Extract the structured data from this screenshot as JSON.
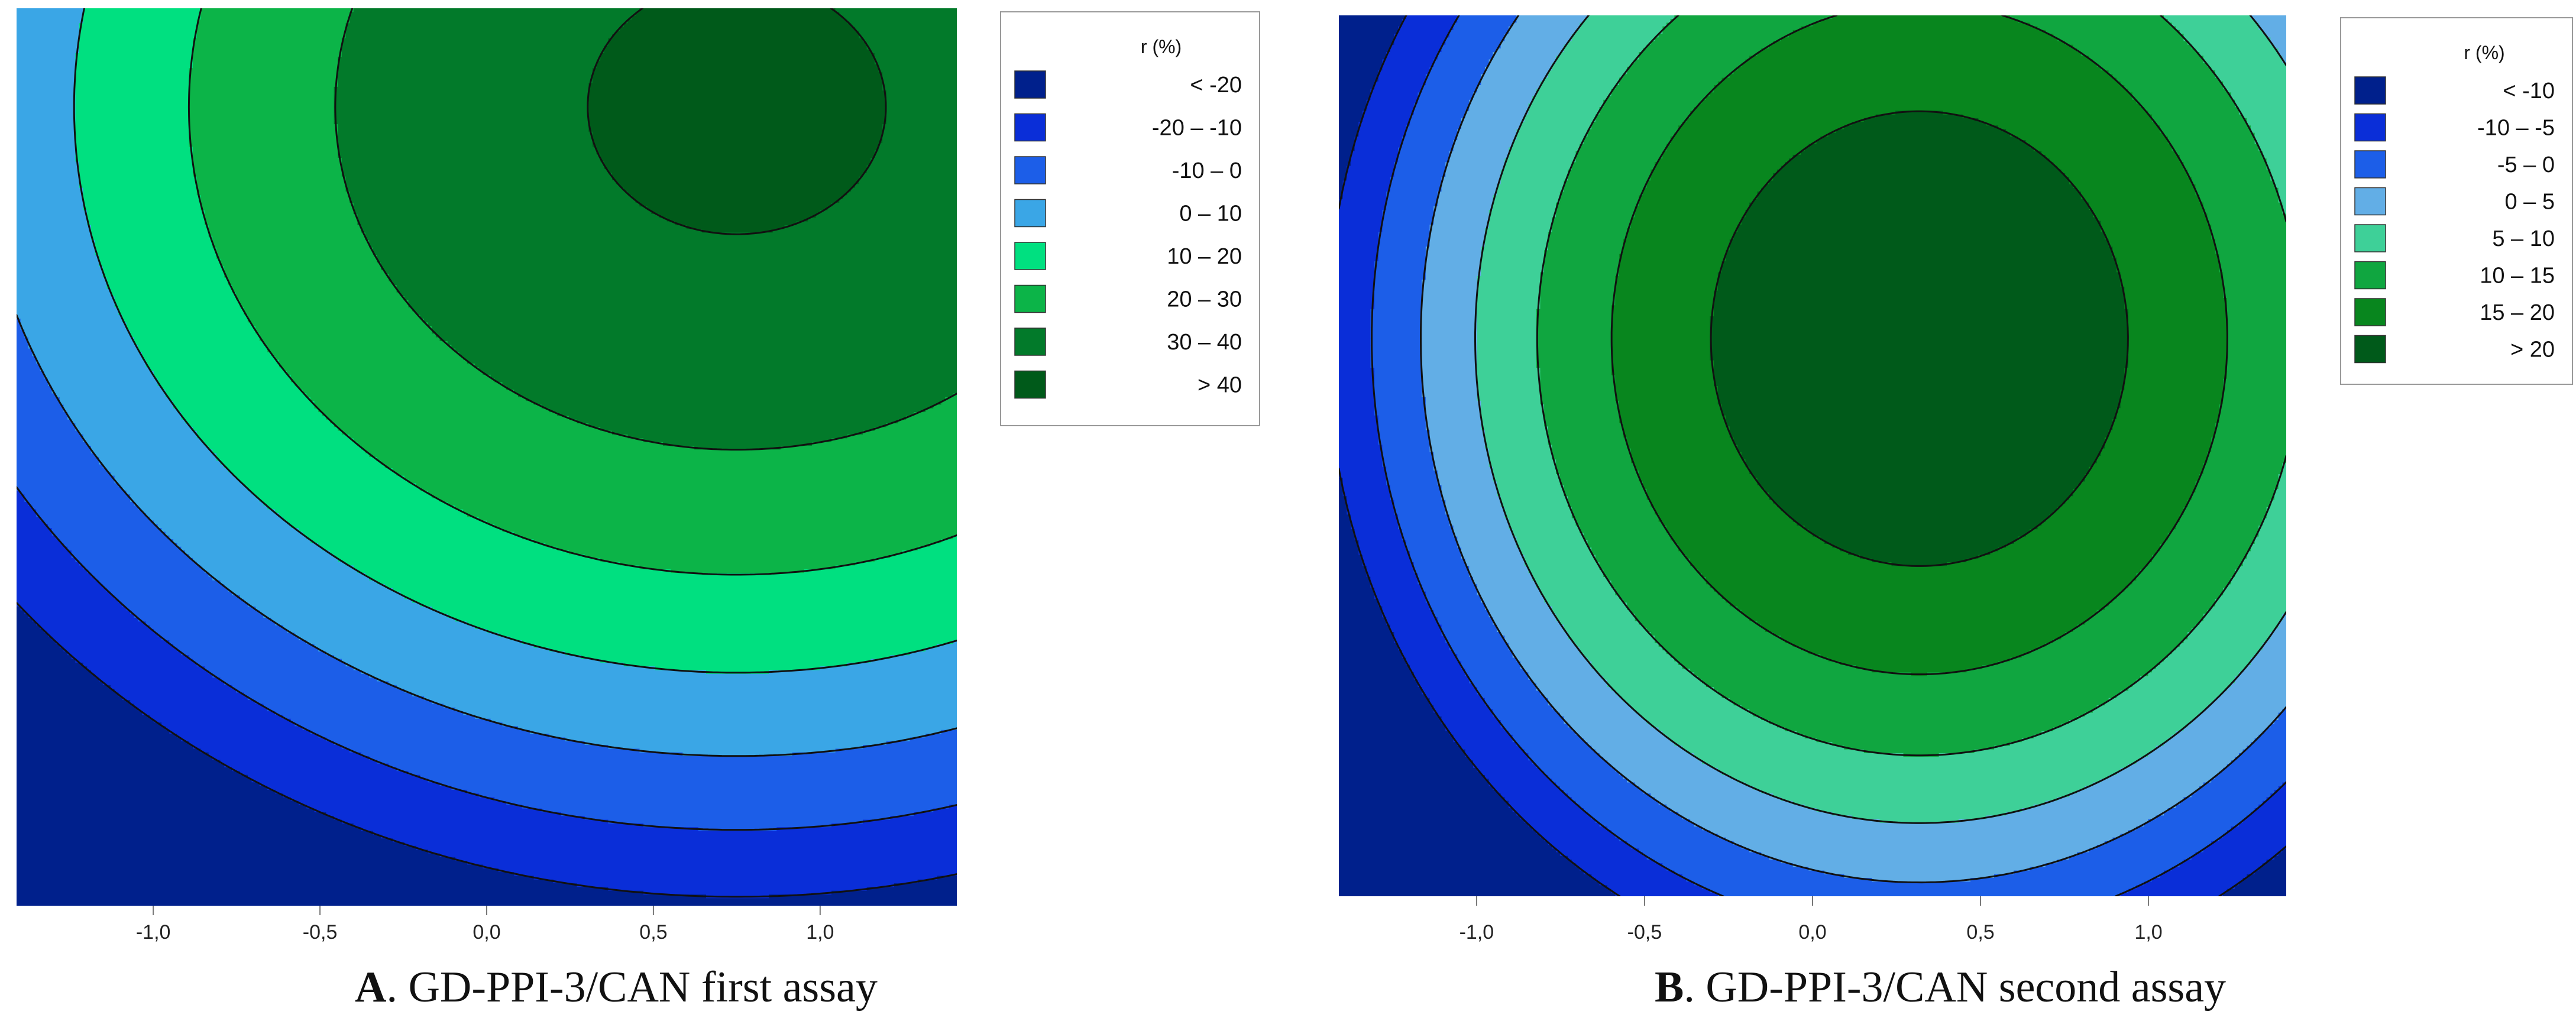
{
  "chart_data": [
    {
      "type": "heatmap",
      "subtype": "contour",
      "panel_letter": "A",
      "caption": ". GD-PPI-3/CAN first assay",
      "xlim": [
        -1.41,
        1.41
      ],
      "ylim": [
        -1.41,
        1.41
      ],
      "x_ticks": [
        -1.0,
        -0.5,
        0.0,
        0.5,
        1.0
      ],
      "x_tick_labels": [
        "-1,0",
        "-0,5",
        "0,0",
        "0,5",
        "1,0"
      ],
      "legend": {
        "title": "r (%)",
        "position": "right",
        "entries": [
          {
            "label": "<      -20",
            "color": "#00208c"
          },
          {
            "label": "-20  –   -10",
            "color": "#0a2ed8"
          },
          {
            "label": "-10  –     0",
            "color": "#1c5ee8"
          },
          {
            "label": "0   –   10",
            "color": "#3aa6e6"
          },
          {
            "label": "10   –   20",
            "color": "#00e080"
          },
          {
            "label": "20   –   30",
            "color": "#0cb448"
          },
          {
            "label": "30   –   40",
            "color": "#027a2a"
          },
          {
            "label": ">    40",
            "color": "#005a1a"
          }
        ]
      },
      "levels": [
        -20,
        -10,
        0,
        10,
        20,
        30,
        40
      ],
      "colors": [
        "#00208c",
        "#0a2ed8",
        "#1c5ee8",
        "#3aa6e6",
        "#00e080",
        "#0cb448",
        "#027a2a",
        "#005a1a"
      ],
      "surface": {
        "b0": 25,
        "b1": 12,
        "b2": 22,
        "b11": -8,
        "b22": -10,
        "b12": 0
      }
    },
    {
      "type": "heatmap",
      "subtype": "contour",
      "panel_letter": "B",
      "caption": ". GD-PPI-3/CAN second assay",
      "xlim": [
        -1.41,
        1.41
      ],
      "ylim": [
        -1.41,
        1.41
      ],
      "x_ticks": [
        -1.0,
        -0.5,
        0.0,
        0.5,
        1.0
      ],
      "x_tick_labels": [
        "-1,0",
        "-0,5",
        "0,0",
        "0,5",
        "1,0"
      ],
      "legend": {
        "title": "r (%)",
        "position": "right",
        "entries": [
          {
            "label": "<    -10",
            "color": "#00208c"
          },
          {
            "label": "-10  –    -5",
            "color": "#0a2ed8"
          },
          {
            "label": "-5  –     0",
            "color": "#1c5ee8"
          },
          {
            "label": "0  –     5",
            "color": "#62aee6"
          },
          {
            "label": "5  –   10",
            "color": "#3ed098"
          },
          {
            "label": "10  –   15",
            "color": "#10a640"
          },
          {
            "label": "15  –   20",
            "color": "#08861e"
          },
          {
            "label": ">    20",
            "color": "#005a1a"
          }
        ]
      },
      "levels": [
        -10,
        -5,
        0,
        5,
        10,
        15,
        20
      ],
      "colors": [
        "#00208c",
        "#0a2ed8",
        "#1c5ee8",
        "#62aee6",
        "#3ed098",
        "#10a640",
        "#08861e",
        "#005a1a"
      ],
      "surface": {
        "b0": 22,
        "b1": 7,
        "b2": 6,
        "b11": -11,
        "b22": -8,
        "b12": 0
      }
    }
  ]
}
